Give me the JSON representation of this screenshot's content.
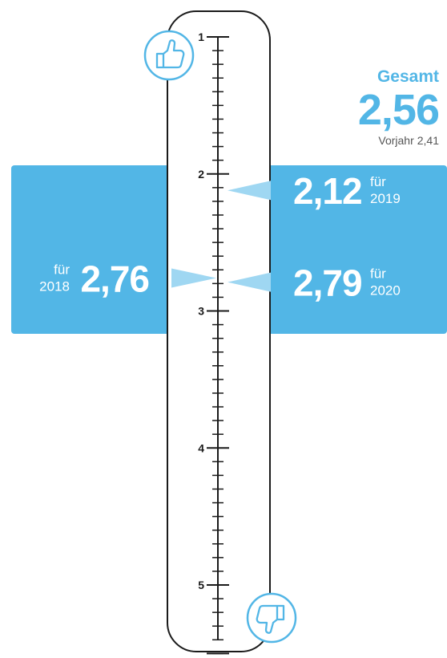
{
  "colors": {
    "accent": "#52b6e6",
    "accent_light": "#9fd7f2",
    "stroke": "#1a1a1a",
    "text_on_accent": "#ffffff"
  },
  "icons": {
    "top": "thumbs-up-icon",
    "bottom": "thumbs-down-icon"
  },
  "total": {
    "title": "Gesamt",
    "value": "2,56",
    "previous_label": "Vorjahr",
    "previous_value": "2,41"
  },
  "chart_data": {
    "type": "scale",
    "scale_min": 1,
    "scale_max": 5.5,
    "tick_labels": [
      "1",
      "2",
      "3",
      "4",
      "5"
    ],
    "minor_tick_step": 0.1,
    "grades": [
      {
        "year": "2018",
        "label": "für",
        "value": 2.76,
        "value_text": "2,76",
        "side": "left"
      },
      {
        "year": "2019",
        "label": "für",
        "value": 2.12,
        "value_text": "2,12",
        "side": "right"
      },
      {
        "year": "2020",
        "label": "für",
        "value": 2.79,
        "value_text": "2,79",
        "side": "right"
      }
    ]
  }
}
